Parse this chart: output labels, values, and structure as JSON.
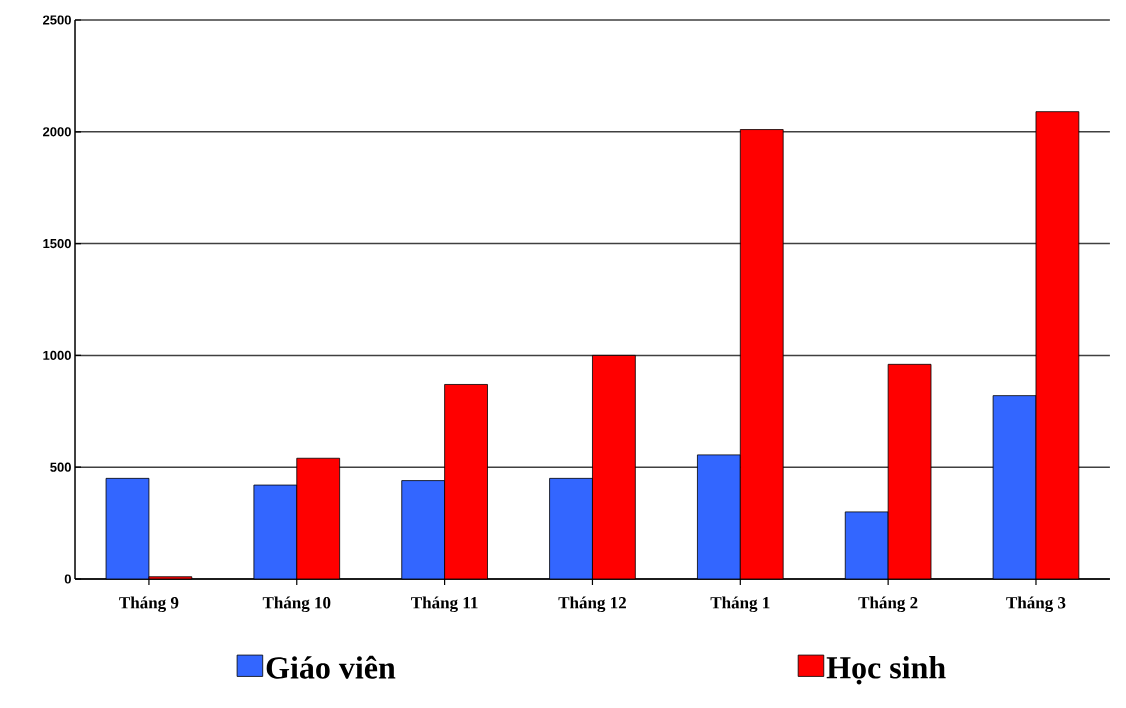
{
  "chart_data": {
    "type": "bar",
    "categories": [
      "Tháng 9",
      "Tháng 10",
      "Tháng 11",
      "Tháng 12",
      "Tháng 1",
      "Tháng 2",
      "Tháng 3"
    ],
    "series": [
      {
        "name": "Giáo viên",
        "color": "#3366ff",
        "values": [
          450,
          420,
          440,
          450,
          555,
          300,
          820
        ]
      },
      {
        "name": "Học sinh",
        "color": "#ff0000",
        "values": [
          10,
          540,
          870,
          1000,
          2010,
          960,
          2090
        ]
      }
    ],
    "ylim": [
      0,
      2500
    ],
    "yticks": [
      0,
      500,
      1000,
      1500,
      2000,
      2500
    ],
    "grid": "y",
    "legend": "bottom"
  }
}
